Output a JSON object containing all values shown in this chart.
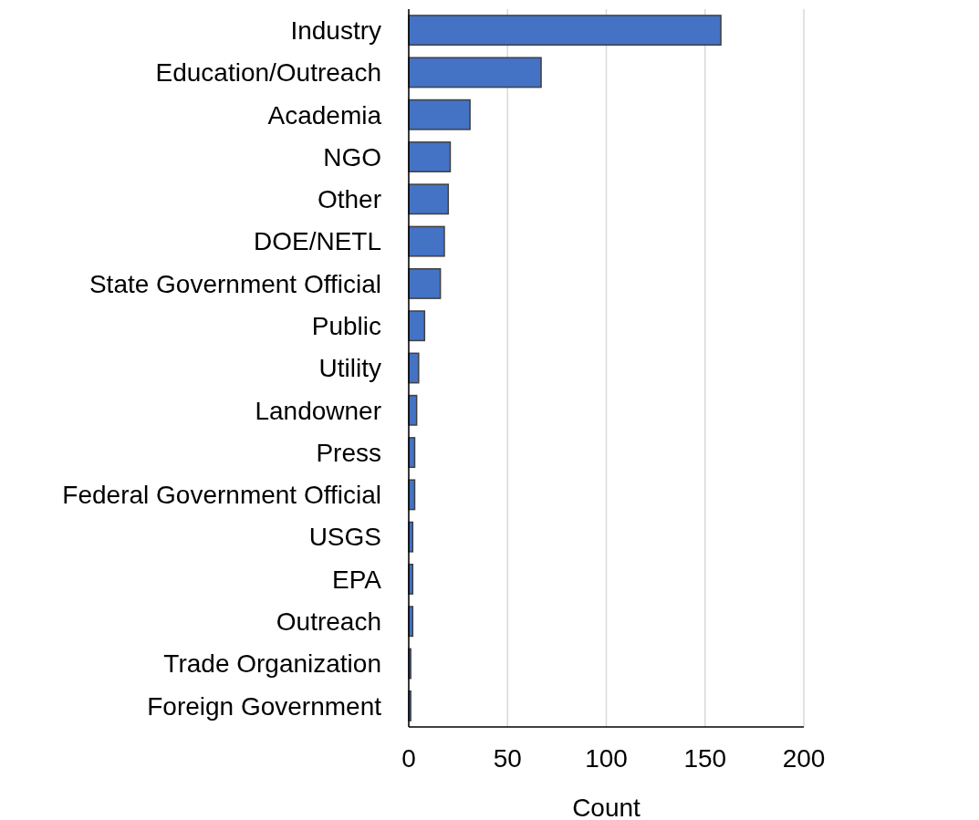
{
  "chart_data": {
    "type": "bar",
    "orientation": "horizontal",
    "xlabel": "Count",
    "categories": [
      "Industry",
      "Education/Outreach",
      "Academia",
      "NGO",
      "Other",
      "DOE/NETL",
      "State Government Official",
      "Public",
      "Utility",
      "Landowner",
      "Press",
      "Federal Government Official",
      "USGS",
      "EPA",
      "Outreach",
      "Trade Organization",
      "Foreign Government"
    ],
    "values": [
      158,
      67,
      31,
      21,
      20,
      18,
      16,
      8,
      5,
      4,
      3,
      3,
      2,
      2,
      2,
      1,
      1
    ],
    "color": "#4472c4",
    "xlim": [
      0,
      200
    ],
    "xticks": [
      0,
      50,
      100,
      150,
      200
    ],
    "grid": "x"
  }
}
